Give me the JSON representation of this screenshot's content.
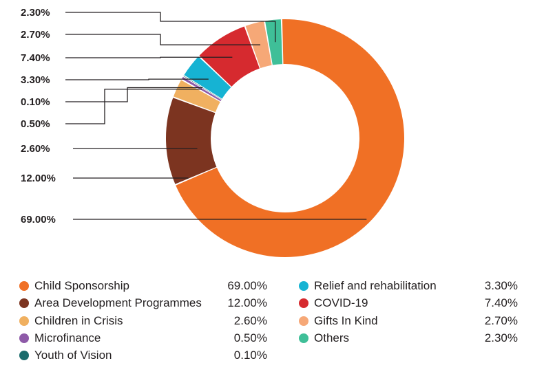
{
  "chart_data": {
    "type": "donut",
    "title": "",
    "legend_position": "bottom",
    "series": [
      {
        "name": "Child Sponsorship",
        "label": "69.00%",
        "value": 69.0,
        "color": "#f07025"
      },
      {
        "name": "Area Development Programmes",
        "label": "12.00%",
        "value": 12.0,
        "color": "#7c3420"
      },
      {
        "name": "Children in Crisis",
        "label": "2.60%",
        "value": 2.6,
        "color": "#f0b060"
      },
      {
        "name": "Microfinance",
        "label": "0.50%",
        "value": 0.5,
        "color": "#8e5aa8"
      },
      {
        "name": "Youth of Vision",
        "label": "0.10%",
        "value": 0.1,
        "color": "#1a6b6c"
      },
      {
        "name": "Relief and rehabilitation",
        "label": "3.30%",
        "value": 3.3,
        "color": "#16b3d3"
      },
      {
        "name": "COVID-19",
        "label": "7.40%",
        "value": 7.4,
        "color": "#d62a2f"
      },
      {
        "name": "Gifts In Kind",
        "label": "2.70%",
        "value": 2.7,
        "color": "#f6a877"
      },
      {
        "name": "Others",
        "label": "2.30%",
        "value": 2.3,
        "color": "#3fbf98"
      }
    ]
  }
}
